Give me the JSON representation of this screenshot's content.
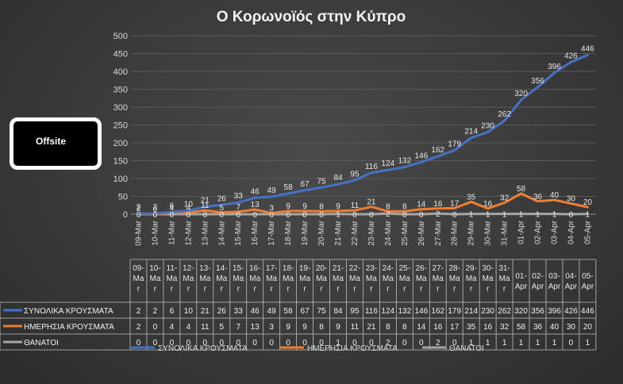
{
  "chart_data": {
    "type": "line",
    "title": "Ο Κορωνοϊός στην Κύπρο",
    "categories": [
      "09-Mar",
      "10-Mar",
      "11-Mar",
      "12-Mar",
      "13-Mar",
      "14-Mar",
      "15-Mar",
      "16-Mar",
      "17-Mar",
      "18-Mar",
      "19-Mar",
      "20-Mar",
      "21-Mar",
      "22-Mar",
      "23-Mar",
      "24-Mar",
      "25-Mar",
      "26-Mar",
      "27-Mar",
      "28-Mar",
      "29-Mar",
      "30-Mar",
      "31-Mar",
      "01-Apr",
      "02-Apr",
      "03-Apr",
      "04-Apr",
      "05-Apr"
    ],
    "table_headers": [
      [
        "09-",
        "Ma",
        "r"
      ],
      [
        "10-",
        "Ma",
        "r"
      ],
      [
        "11-",
        "Ma",
        "r"
      ],
      [
        "12-",
        "Ma",
        "r"
      ],
      [
        "13-",
        "Ma",
        "r"
      ],
      [
        "14-",
        "Ma",
        "r"
      ],
      [
        "15-",
        "Ma",
        "r"
      ],
      [
        "16-",
        "Ma",
        "r"
      ],
      [
        "17-",
        "Ma",
        "r"
      ],
      [
        "18-",
        "Ma",
        "r"
      ],
      [
        "19-",
        "Ma",
        "r"
      ],
      [
        "20-",
        "Ma",
        "r"
      ],
      [
        "21-",
        "Ma",
        "r"
      ],
      [
        "22-",
        "Ma",
        "r"
      ],
      [
        "23-",
        "Ma",
        "r"
      ],
      [
        "24-",
        "Ma",
        "r"
      ],
      [
        "25-",
        "Ma",
        "r"
      ],
      [
        "26-",
        "Ma",
        "r"
      ],
      [
        "27-",
        "Ma",
        "r"
      ],
      [
        "28-",
        "Ma",
        "r"
      ],
      [
        "29-",
        "Ma",
        "r"
      ],
      [
        "30-",
        "Ma",
        "r"
      ],
      [
        "31-",
        "Ma",
        "r"
      ],
      [
        "01-",
        "Apr"
      ],
      [
        "02-",
        "Apr"
      ],
      [
        "03-",
        "Apr"
      ],
      [
        "04-",
        "Apr"
      ],
      [
        "05-",
        "Apr"
      ]
    ],
    "series": [
      {
        "name": "ΣΥΝΟΛΙΚΑ ΚΡΟΥΣΜΑΤΑ",
        "color": "#4472c4",
        "values": [
          2,
          2,
          6,
          10,
          21,
          26,
          33,
          46,
          49,
          58,
          67,
          75,
          84,
          95,
          116,
          124,
          132,
          146,
          162,
          179,
          214,
          230,
          262,
          320,
          356,
          396,
          426,
          446
        ]
      },
      {
        "name": "ΗΜΕΡΗΣΙΑ ΚΡΟΥΣΜΑΤΑ",
        "color": "#ed7d31",
        "values": [
          2,
          0,
          4,
          4,
          11,
          5,
          7,
          13,
          3,
          9,
          9,
          8,
          9,
          11,
          21,
          8,
          8,
          14,
          16,
          17,
          35,
          16,
          32,
          58,
          36,
          40,
          30,
          20
        ]
      },
      {
        "name": "ΘΑΝΑΤΟΙ",
        "color": "#a5a5a5",
        "values": [
          0,
          0,
          0,
          0,
          0,
          0,
          0,
          0,
          0,
          0,
          0,
          0,
          1,
          0,
          0,
          2,
          0,
          0,
          2,
          0,
          1,
          1,
          1,
          1,
          1,
          1,
          0,
          1
        ]
      }
    ],
    "ylim": [
      0,
      500
    ],
    "yticks": [
      0,
      50,
      100,
      150,
      200,
      250,
      300,
      350,
      400,
      450,
      500
    ],
    "grid": true,
    "legend_position": "bottom"
  },
  "overlay": {
    "label": "Offsite"
  }
}
